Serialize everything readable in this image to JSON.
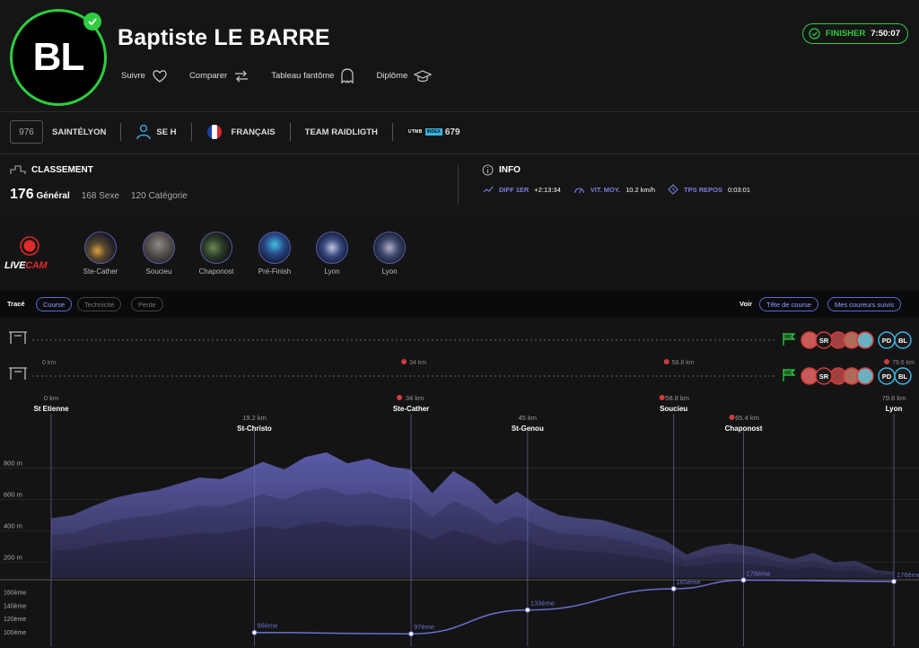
{
  "runner": {
    "initials": "BL",
    "name": "Baptiste LE BARRE",
    "actions": [
      "Suivre",
      "Comparer",
      "Tableau fantôme",
      "Diplôme"
    ],
    "status_label": "FINISHER",
    "finish_time": "7:50:07"
  },
  "details": {
    "bib": "976",
    "race": "SAINTÉLYON",
    "category": "SE H",
    "nationality": "FRANÇAIS",
    "team": "TEAM RAIDLIGTH",
    "utmb_logo": "UTMB",
    "utmb_index_label": "INDEX",
    "utmb_index": "679"
  },
  "classement": {
    "title": "CLASSEMENT",
    "general_value": "176",
    "general_label": "Général",
    "sexe": "168 Sexe",
    "categorie": "120 Catégorie"
  },
  "info": {
    "title": "INFO",
    "diff_label": "DIFF 1ER",
    "diff_value": "+2:13:34",
    "speed_label": "VIT. MOY.",
    "speed_value": "10.2 km/h",
    "rest_label": "TPS REPOS",
    "rest_value": "0:03:01"
  },
  "livecam": {
    "logo_top": "LIVE",
    "logo_bottom": "CAM",
    "cams": [
      "Ste-Cather",
      "Soucieu",
      "Chaponost",
      "Pré-Finish",
      "Lyon",
      "Lyon"
    ]
  },
  "trace_bar": {
    "trace_label": "Tracé",
    "tabs": [
      "Course",
      "Technicité",
      "Pente"
    ],
    "voir_label": "Voir",
    "voir_buttons": [
      "Tête de course",
      "Mes coureurs suivis"
    ]
  },
  "runner_markers": {
    "top_km": [
      "0 km",
      "34 km",
      "58.8 km",
      "79.6 km"
    ],
    "badges": [
      "SR",
      "PD",
      "BL"
    ]
  },
  "colors": {
    "accent_green": "#2ecc40",
    "accent_purple": "#6e6fd4",
    "area_light": "#5a5aa8",
    "area_mid": "#4a4a90",
    "area_dark": "#3b3b78"
  },
  "chart_data": {
    "type": "area",
    "title": "",
    "xlabel": "",
    "ylabel": "",
    "x_unit": "km",
    "xlim": [
      0,
      79.6
    ],
    "ylim": [
      100,
      900
    ],
    "yticks": [
      "800 m",
      "600 m",
      "400 m",
      "200 m"
    ],
    "ytick_values": [
      800,
      600,
      400,
      200
    ],
    "waypoints": [
      {
        "name": "St Etienne",
        "km": "0 km",
        "x": 0
      },
      {
        "name": "St-Christo",
        "km": "19.2 km",
        "x": 19.2
      },
      {
        "name": "Ste-Cather",
        "km": "34 km",
        "x": 34
      },
      {
        "name": "St-Genou",
        "km": "45 km",
        "x": 45
      },
      {
        "name": "Soucieu",
        "km": "58.8 km",
        "x": 58.8
      },
      {
        "name": "Chaponost",
        "km": "65.4 km",
        "x": 65.4
      },
      {
        "name": "Lyon",
        "km": "79.6 km",
        "x": 79.6
      }
    ],
    "elevation": {
      "x": [
        0,
        2,
        4,
        6,
        8,
        10,
        12,
        14,
        16,
        18,
        20,
        22,
        24,
        26,
        28,
        30,
        32,
        34,
        36,
        38,
        40,
        42,
        44,
        46,
        48,
        50,
        52,
        54,
        56,
        58,
        60,
        62,
        64,
        66,
        68,
        70,
        72,
        74,
        76,
        78,
        79.6
      ],
      "y": [
        480,
        500,
        560,
        610,
        640,
        660,
        700,
        740,
        730,
        780,
        840,
        790,
        870,
        900,
        830,
        860,
        810,
        790,
        640,
        780,
        700,
        570,
        650,
        560,
        500,
        480,
        470,
        430,
        390,
        340,
        250,
        300,
        320,
        300,
        260,
        220,
        260,
        200,
        210,
        150,
        140
      ]
    },
    "rank_series": {
      "name": "",
      "yticks": [
        "160ème",
        "140ème",
        "120ème",
        "100ème"
      ],
      "ytick_values": [
        160,
        140,
        120,
        100
      ],
      "points": [
        {
          "x": 19.2,
          "value": 99,
          "label": "99ème"
        },
        {
          "x": 34,
          "value": 97,
          "label": "97ème"
        },
        {
          "x": 45,
          "value": 133,
          "label": "133ème"
        },
        {
          "x": 58.8,
          "value": 165,
          "label": "165ème"
        },
        {
          "x": 65.4,
          "value": 178,
          "label": "178ème"
        },
        {
          "x": 79.6,
          "value": 176,
          "label": "176ème"
        }
      ]
    }
  }
}
